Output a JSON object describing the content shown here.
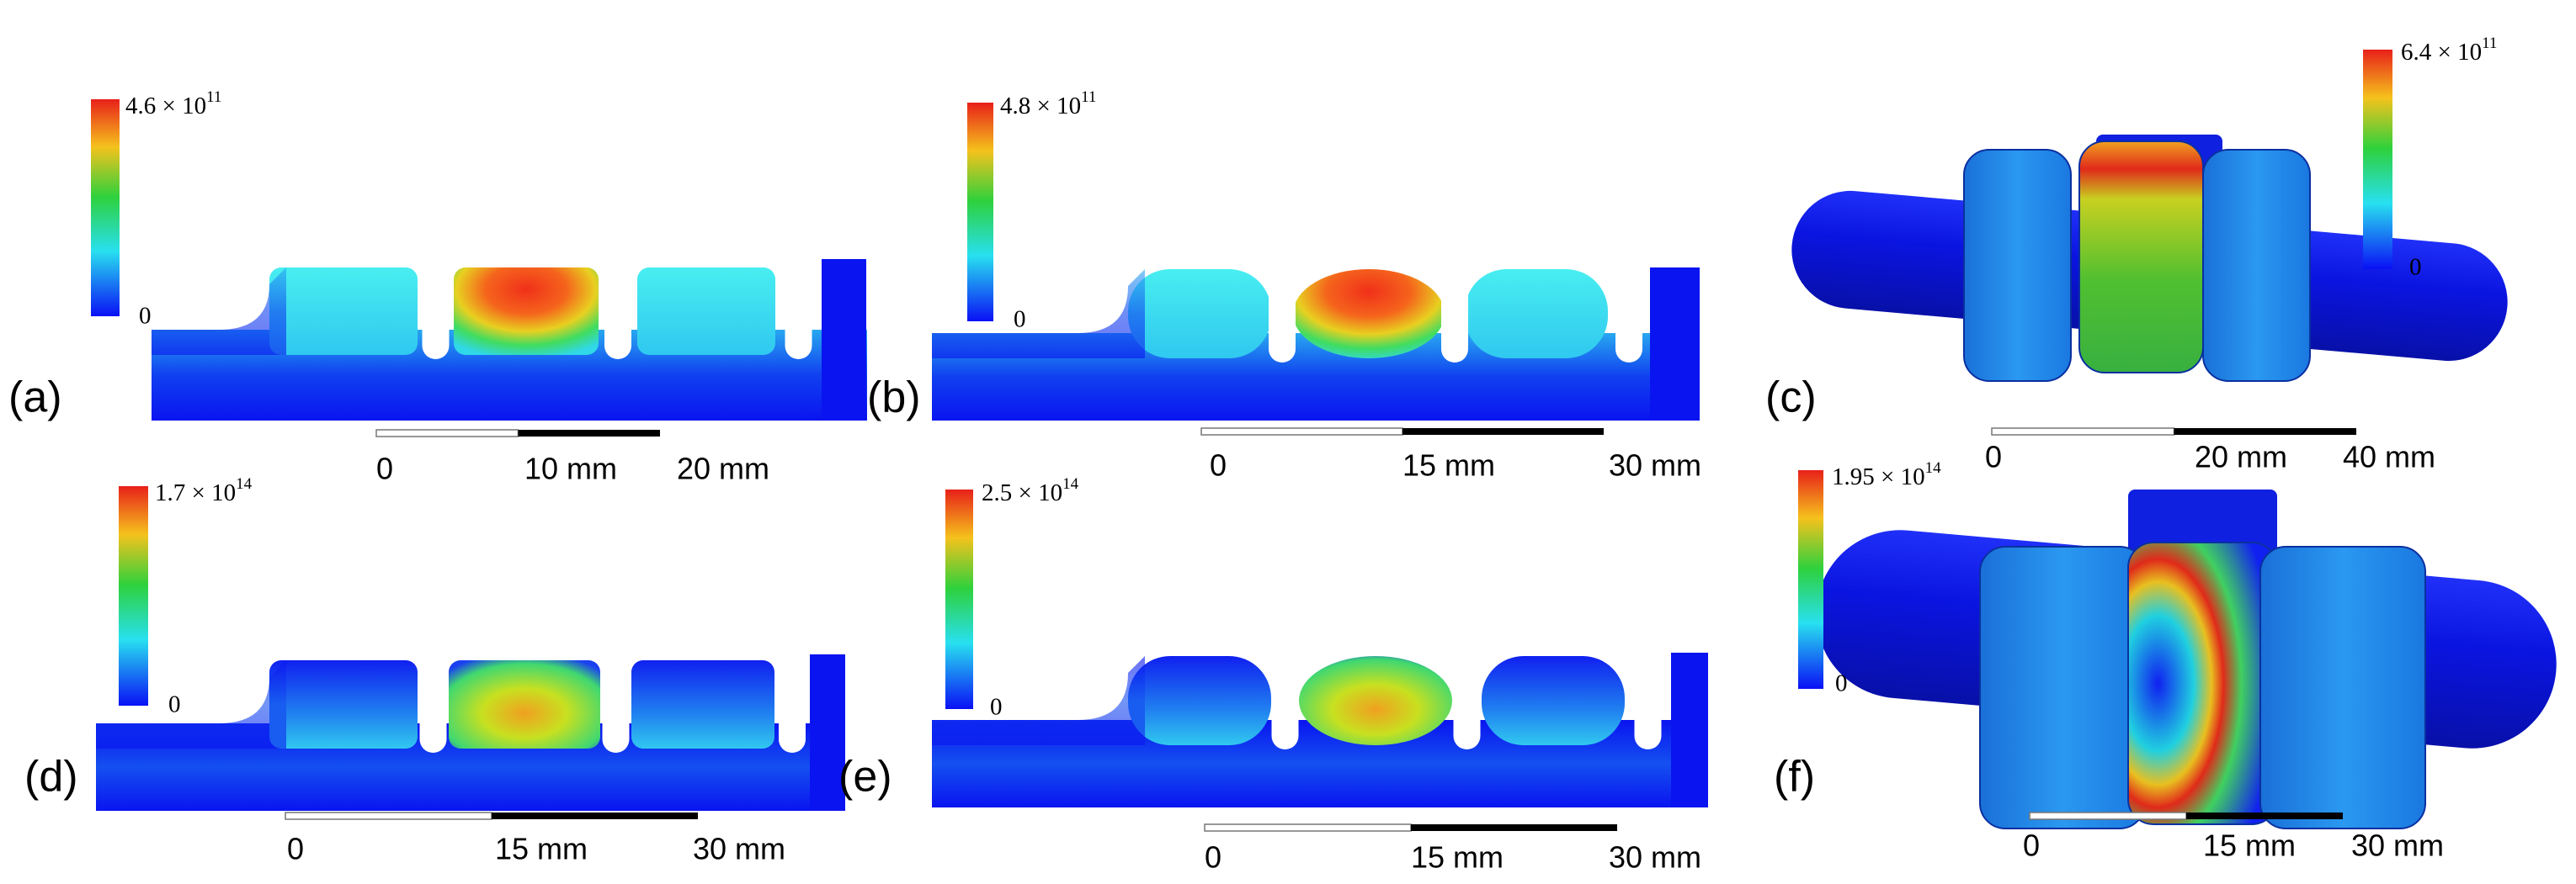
{
  "panels": [
    {
      "label": "(a)",
      "colorbar": {
        "max": {
          "base": "4.6 × 10",
          "exp": "11"
        },
        "min": "0"
      },
      "scale_bar": [
        "0",
        "10 mm",
        "20 mm"
      ]
    },
    {
      "label": "(b)",
      "colorbar": {
        "max": {
          "base": "4.8 × 10",
          "exp": "11"
        },
        "min": "0"
      },
      "scale_bar": [
        "0",
        "15 mm",
        "30 mm"
      ]
    },
    {
      "label": "(c)",
      "colorbar": {
        "max": {
          "base": "6.4 × 10",
          "exp": "11"
        },
        "min": "0"
      },
      "scale_bar": [
        "0",
        "20 mm",
        "40 mm"
      ]
    },
    {
      "label": "(d)",
      "colorbar": {
        "max": {
          "base": "1.7 × 10",
          "exp": "14"
        },
        "min": "0"
      },
      "scale_bar": [
        "0",
        "15 mm",
        "30 mm"
      ]
    },
    {
      "label": "(e)",
      "colorbar": {
        "max": {
          "base": "2.5 × 10",
          "exp": "14"
        },
        "min": "0"
      },
      "scale_bar": [
        "0",
        "15 mm",
        "30 mm"
      ]
    },
    {
      "label": "(f)",
      "colorbar": {
        "max": {
          "base": "1.95 × 10",
          "exp": "14"
        },
        "min": "0"
      },
      "scale_bar": [
        "0",
        "15 mm",
        "30 mm"
      ]
    }
  ]
}
